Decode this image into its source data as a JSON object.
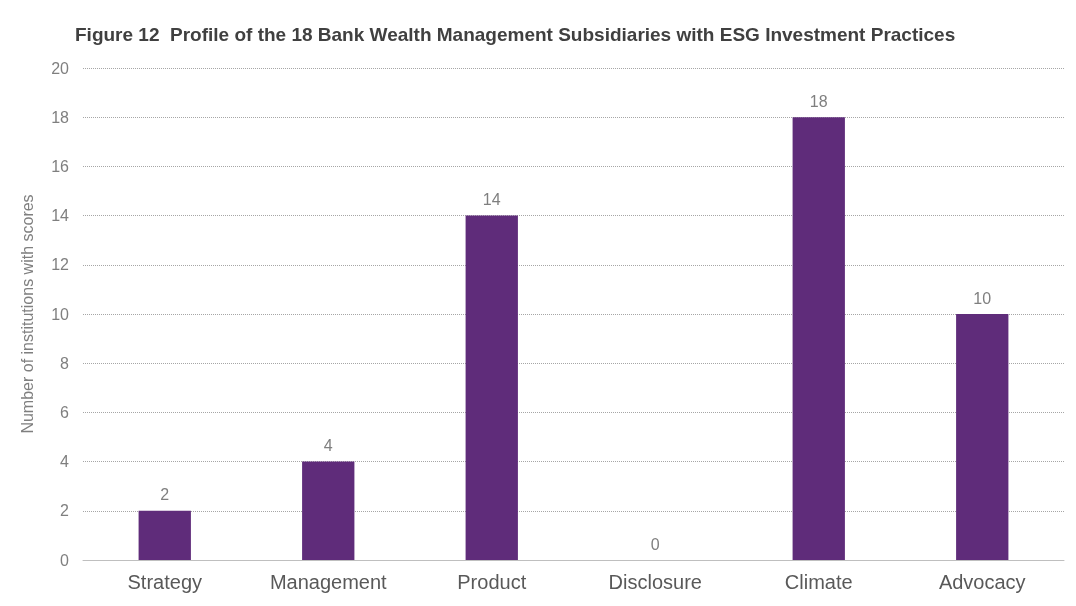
{
  "chart_data": {
    "type": "bar",
    "title": "Figure 12  Profile of the 18 Bank Wealth Management Subsidiaries with ESG Investment Practices",
    "ylabel": "Number of institutions with scores",
    "categories": [
      "Strategy",
      "Management",
      "Product",
      "Disclosure",
      "Climate",
      "Advocacy"
    ],
    "values": [
      2,
      4,
      14,
      0,
      18,
      10
    ],
    "color": "#5f2c7a",
    "ylim": [
      0,
      20
    ],
    "yticks": [
      0,
      2,
      4,
      6,
      8,
      10,
      12,
      14,
      16,
      18,
      20
    ],
    "grid": "y",
    "data_labels": true
  }
}
